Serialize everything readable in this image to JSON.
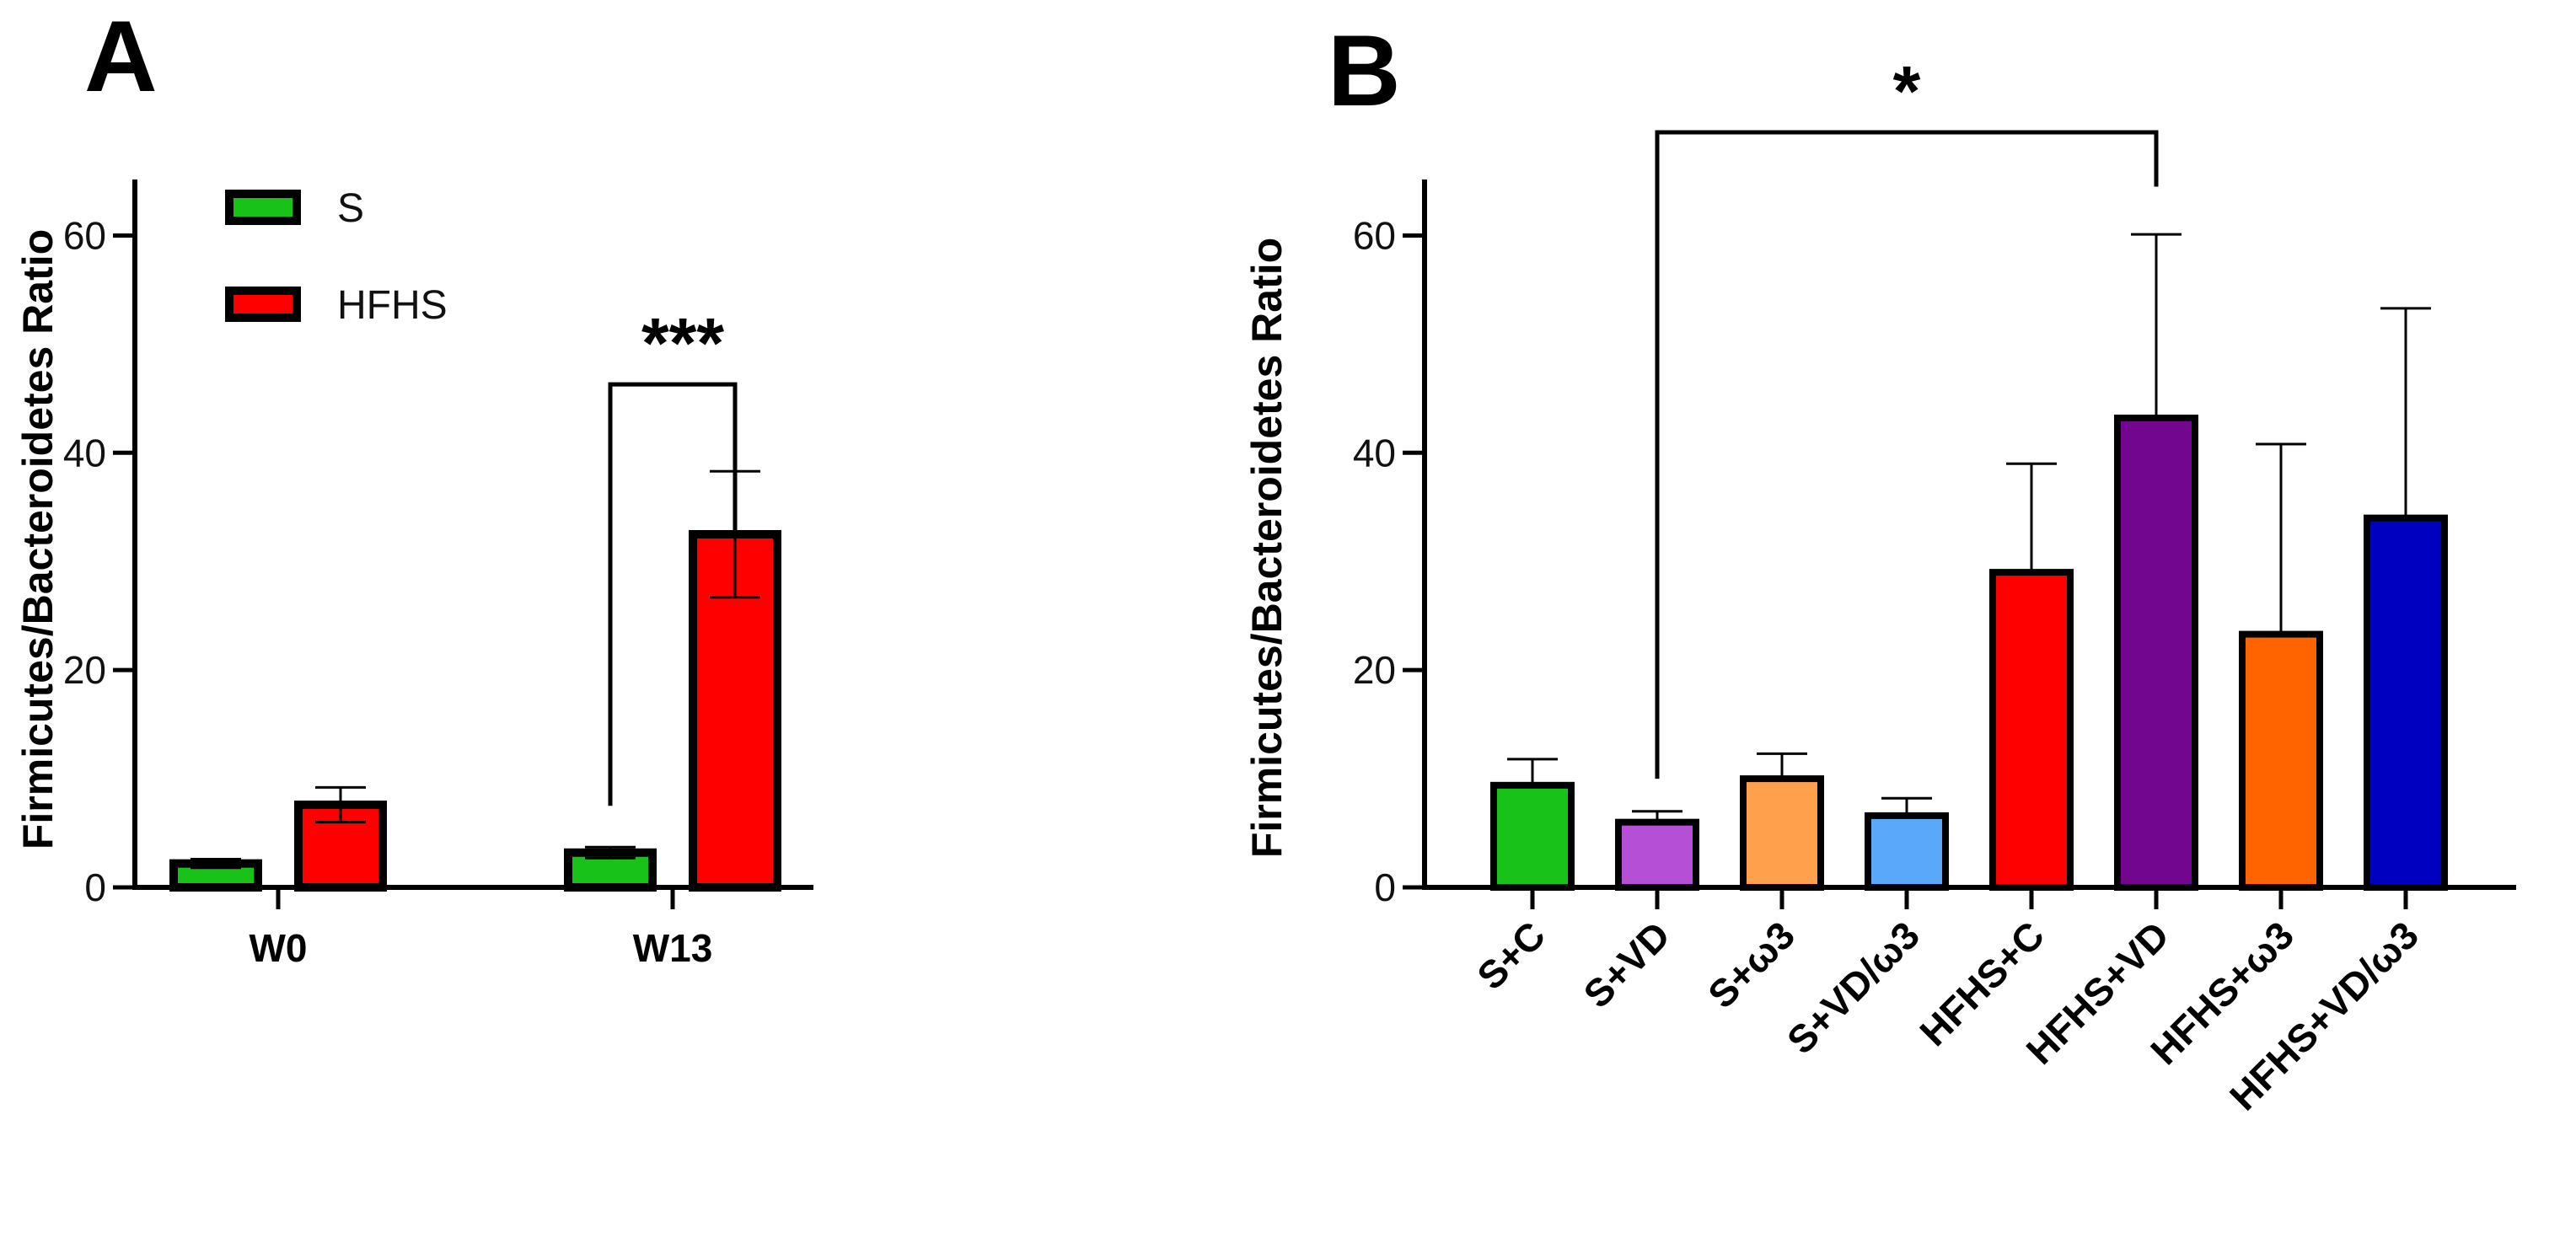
{
  "chart_data": [
    {
      "panel": "A",
      "type": "bar",
      "grouped": true,
      "categories": [
        "W0",
        "W13"
      ],
      "series": [
        {
          "name": "S",
          "color": "#18C218",
          "values": [
            2.2,
            3.2
          ],
          "errors": [
            0.4,
            0.5
          ]
        },
        {
          "name": "HFHS",
          "color": "#FF0000",
          "values": [
            7.6,
            32.5
          ],
          "errors": [
            1.6,
            5.8
          ]
        }
      ],
      "ylabel": "Firmicutes/Bacteroidetes Ratio",
      "xlabel": "",
      "ylim": [
        0,
        65
      ],
      "yticks": [
        0,
        20,
        40,
        60
      ],
      "legend": {
        "position": "top-left",
        "entries": [
          "S",
          "HFHS"
        ]
      },
      "annotations": [
        {
          "text": "***",
          "category": "W13",
          "bracket_from_y": 7.5,
          "bracket_to_y": 32.8,
          "bracket_top_y": 46.3
        }
      ]
    },
    {
      "panel": "B",
      "type": "bar",
      "grouped": false,
      "categories": [
        "S+C",
        "S+VD",
        "S+ω3",
        "S+VD/ω3",
        "HFHS+C",
        "HFHS+VD",
        "HFHS+ω3",
        "HFHS+VD/ω3"
      ],
      "values": [
        9.4,
        6.0,
        10.0,
        6.6,
        29.0,
        43.2,
        23.3,
        34.0
      ],
      "errors": [
        2.4,
        1.0,
        2.3,
        1.6,
        10.0,
        16.9,
        17.5,
        19.3
      ],
      "colors": [
        "#18C218",
        "#B550D6",
        "#FFA04D",
        "#5AA8FA",
        "#FF0000",
        "#73068F",
        "#FF6400",
        "#0000C0"
      ],
      "ylabel": "Firmicutes/Bacteroidetes Ratio",
      "xlabel": "",
      "ylim": [
        0,
        65
      ],
      "yticks": [
        0,
        20,
        40,
        60
      ],
      "annotations": [
        {
          "text": "*",
          "from_category": "S+VD",
          "to_category": "HFHS+VD",
          "left_from_y": 10.0,
          "right_from_y": 64.5,
          "bracket_top_y": 69.5
        }
      ]
    }
  ]
}
